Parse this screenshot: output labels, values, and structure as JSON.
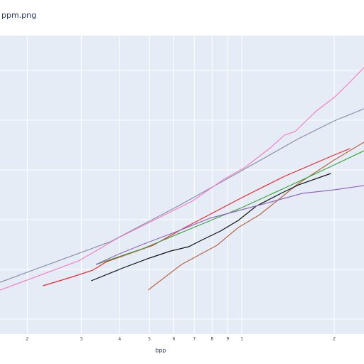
{
  "chart_data": {
    "type": "line",
    "title": "ppm.png",
    "x_label": "bpp",
    "x_log": true,
    "grid": true,
    "ytick_labels": false,
    "xlim": [
      0.163,
      2.5
    ],
    "ylim": [
      0,
      420
    ],
    "xticks": [
      {
        "value": 0.2,
        "label": "2"
      },
      {
        "value": 0.3,
        "label": "3"
      },
      {
        "value": 0.4,
        "label": "4"
      },
      {
        "value": 0.5,
        "label": "5"
      },
      {
        "value": 0.6,
        "label": "6"
      },
      {
        "value": 0.7,
        "label": "7"
      },
      {
        "value": 0.8,
        "label": "8"
      },
      {
        "value": 0.9,
        "label": "9"
      },
      1,
      2
    ],
    "yticks": [
      21,
      91,
      161,
      231,
      301,
      371
    ],
    "series": [
      {
        "color": "#8a8fab",
        "x": [
          0.163,
          0.373,
          0.619,
          1,
          1.53,
          2.0,
          2.5
        ],
        "values": [
          73,
          130,
          180,
          230,
          275,
          300,
          317
        ]
      },
      {
        "color": "#f27fcb",
        "x": [
          0.163,
          0.294,
          0.394,
          0.556,
          0.689,
          0.875,
          1.027,
          1.238,
          1.377,
          1.491,
          1.75,
          2.0,
          2.22,
          2.5
        ],
        "values": [
          62,
          103,
          135,
          167,
          187,
          218,
          235,
          262,
          280,
          285,
          314,
          333,
          352,
          375
        ]
      },
      {
        "color": "#e8282e",
        "x": [
          0.225,
          0.25,
          0.278,
          0.327,
          0.363,
          0.514,
          0.653,
          1,
          1.377,
          2.0,
          2.25
        ],
        "values": [
          68,
          74,
          80,
          90,
          102,
          125,
          150,
          192,
          222,
          252,
          261
        ]
      },
      {
        "color": "#b86548",
        "x": [
          0.495,
          0.636,
          0.83,
          0.974,
          1.143,
          1.341,
          1.53,
          2.0,
          2.5
        ],
        "values": [
          62,
          98,
          125,
          150,
          168,
          192,
          212,
          245,
          270
        ]
      },
      {
        "color": "#3aa63a",
        "x": [
          0.335,
          0.474,
          0.653,
          1,
          1.452,
          2.0,
          2.5
        ],
        "values": [
          98,
          120,
          145,
          178,
          210,
          238,
          258
        ]
      },
      {
        "color": "#111111",
        "x": [
          0.323,
          0.415,
          0.5,
          0.587,
          0.671,
          0.746,
          0.852,
          0.974,
          1.113,
          1.341,
          1.53,
          1.95
        ],
        "values": [
          75,
          94,
          107,
          117,
          123,
          133,
          145,
          160,
          180,
          198,
          210,
          226
        ]
      },
      {
        "color": "#9467bd",
        "x": [
          0.335,
          0.394,
          0.474,
          0.619,
          0.787,
          1,
          1.271,
          1.573,
          2.0,
          2.5
        ],
        "values": [
          98,
          112,
          126,
          145,
          163,
          175,
          187,
          198,
          203,
          209
        ]
      }
    ]
  }
}
